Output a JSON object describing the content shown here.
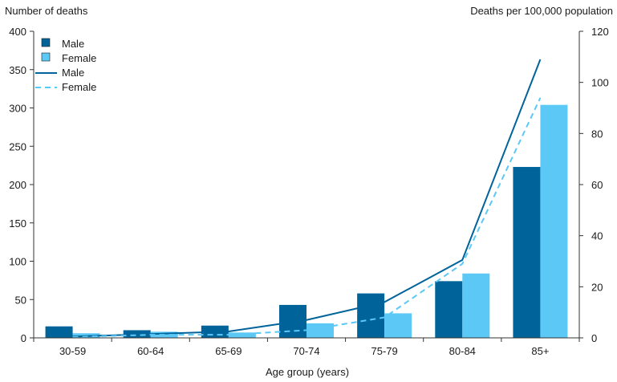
{
  "chart_data": {
    "type": "bar",
    "ylabel_left": "Number of deaths",
    "ylabel_right": "Deaths per 100,000 population",
    "xlabel": "Age group (years)",
    "categories": [
      "30-59",
      "60-64",
      "65-69",
      "70-74",
      "75-79",
      "80-84",
      "85+"
    ],
    "ylim_left": [
      0,
      400
    ],
    "yticks_left": [
      0,
      50,
      100,
      150,
      200,
      250,
      300,
      350,
      400
    ],
    "ylim_right": [
      0,
      120
    ],
    "yticks_right": [
      0,
      20,
      40,
      60,
      80,
      100,
      120
    ],
    "grid": false,
    "legend_position": "top-left",
    "bar_series": [
      {
        "name": "Male",
        "color": "#00649b",
        "values": [
          15,
          10,
          16,
          43,
          58,
          74,
          223
        ]
      },
      {
        "name": "Female",
        "color": "#5bc8f5",
        "values": [
          6,
          8,
          7,
          19,
          32,
          84,
          304
        ]
      }
    ],
    "line_series": [
      {
        "name": "Male",
        "color": "#00649b",
        "dash": "solid",
        "values": [
          0.5,
          1.5,
          2.5,
          7,
          14,
          30.5,
          109
        ]
      },
      {
        "name": "Female",
        "color": "#5bc8f5",
        "dash": "dashed",
        "values": [
          0.3,
          1.2,
          1.2,
          3,
          8,
          29,
          94
        ]
      }
    ]
  }
}
